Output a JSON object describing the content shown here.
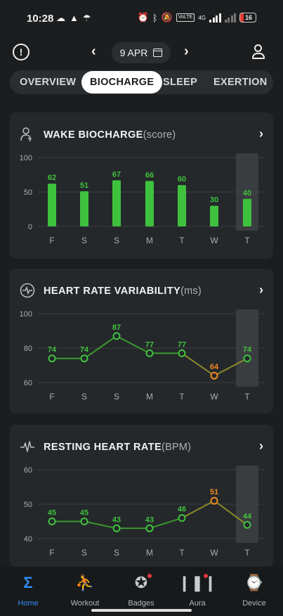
{
  "status_bar": {
    "time": "10:28",
    "left_icons": [
      "cloud-icon",
      "drive-icon",
      "umbrella-icon"
    ],
    "volte": "VoLTE",
    "network": "4G",
    "battery": "16"
  },
  "top_nav": {
    "date": "9 APR"
  },
  "tabs": [
    {
      "label": "OVERVIEW",
      "active": false
    },
    {
      "label": "BIOCHARGE",
      "active": true
    },
    {
      "label": "SLEEP",
      "active": false
    },
    {
      "label": "EXERTION",
      "active": false
    }
  ],
  "cards": {
    "biocharge": {
      "title": "WAKE BIOCHARGE",
      "unit": "(score)",
      "icon": "person-charge-icon"
    },
    "hrv": {
      "title": "HEART RATE VARIABILITY",
      "unit": "(ms)",
      "icon": "heartbeat-circle-icon"
    },
    "rhr": {
      "title": "RESTING HEART RATE",
      "unit": "(BPM)",
      "icon": "pulse-wave-icon"
    }
  },
  "chart_data": [
    {
      "type": "bar",
      "id": "biocharge",
      "categories": [
        "F",
        "S",
        "S",
        "M",
        "T",
        "W",
        "T"
      ],
      "values": [
        62,
        51,
        67,
        66,
        60,
        30,
        40
      ],
      "yticks": [
        0,
        50,
        100
      ],
      "ylim": [
        0,
        100
      ],
      "highlight_index": 6,
      "color": "#3ec23e"
    },
    {
      "type": "line",
      "id": "hrv",
      "categories": [
        "F",
        "S",
        "S",
        "M",
        "T",
        "W",
        "T"
      ],
      "values": [
        74,
        74,
        87,
        77,
        77,
        64,
        74
      ],
      "yticks": [
        60,
        80,
        100
      ],
      "ylim": [
        60,
        100
      ],
      "highlight_index": 6,
      "low_index": 5,
      "color": "#3ec23e",
      "low_color": "#f08a24"
    },
    {
      "type": "line",
      "id": "rhr",
      "categories": [
        "F",
        "S",
        "S",
        "M",
        "T",
        "W",
        "T"
      ],
      "values": [
        45,
        45,
        43,
        43,
        46,
        51,
        44
      ],
      "yticks": [
        40,
        50,
        60
      ],
      "ylim": [
        40,
        60
      ],
      "highlight_index": 6,
      "low_index": 5,
      "color": "#3ec23e",
      "low_color": "#f08a24"
    }
  ],
  "bottom_nav": [
    {
      "label": "Home",
      "icon": "home-sigma-icon",
      "active": true
    },
    {
      "label": "Workout",
      "icon": "workout-icon",
      "active": false
    },
    {
      "label": "Badges",
      "icon": "badge-medal-icon",
      "active": false,
      "dot": true
    },
    {
      "label": "Aura",
      "icon": "aura-icon",
      "active": false,
      "dot": true
    },
    {
      "label": "Device",
      "icon": "watch-icon",
      "active": false
    }
  ]
}
